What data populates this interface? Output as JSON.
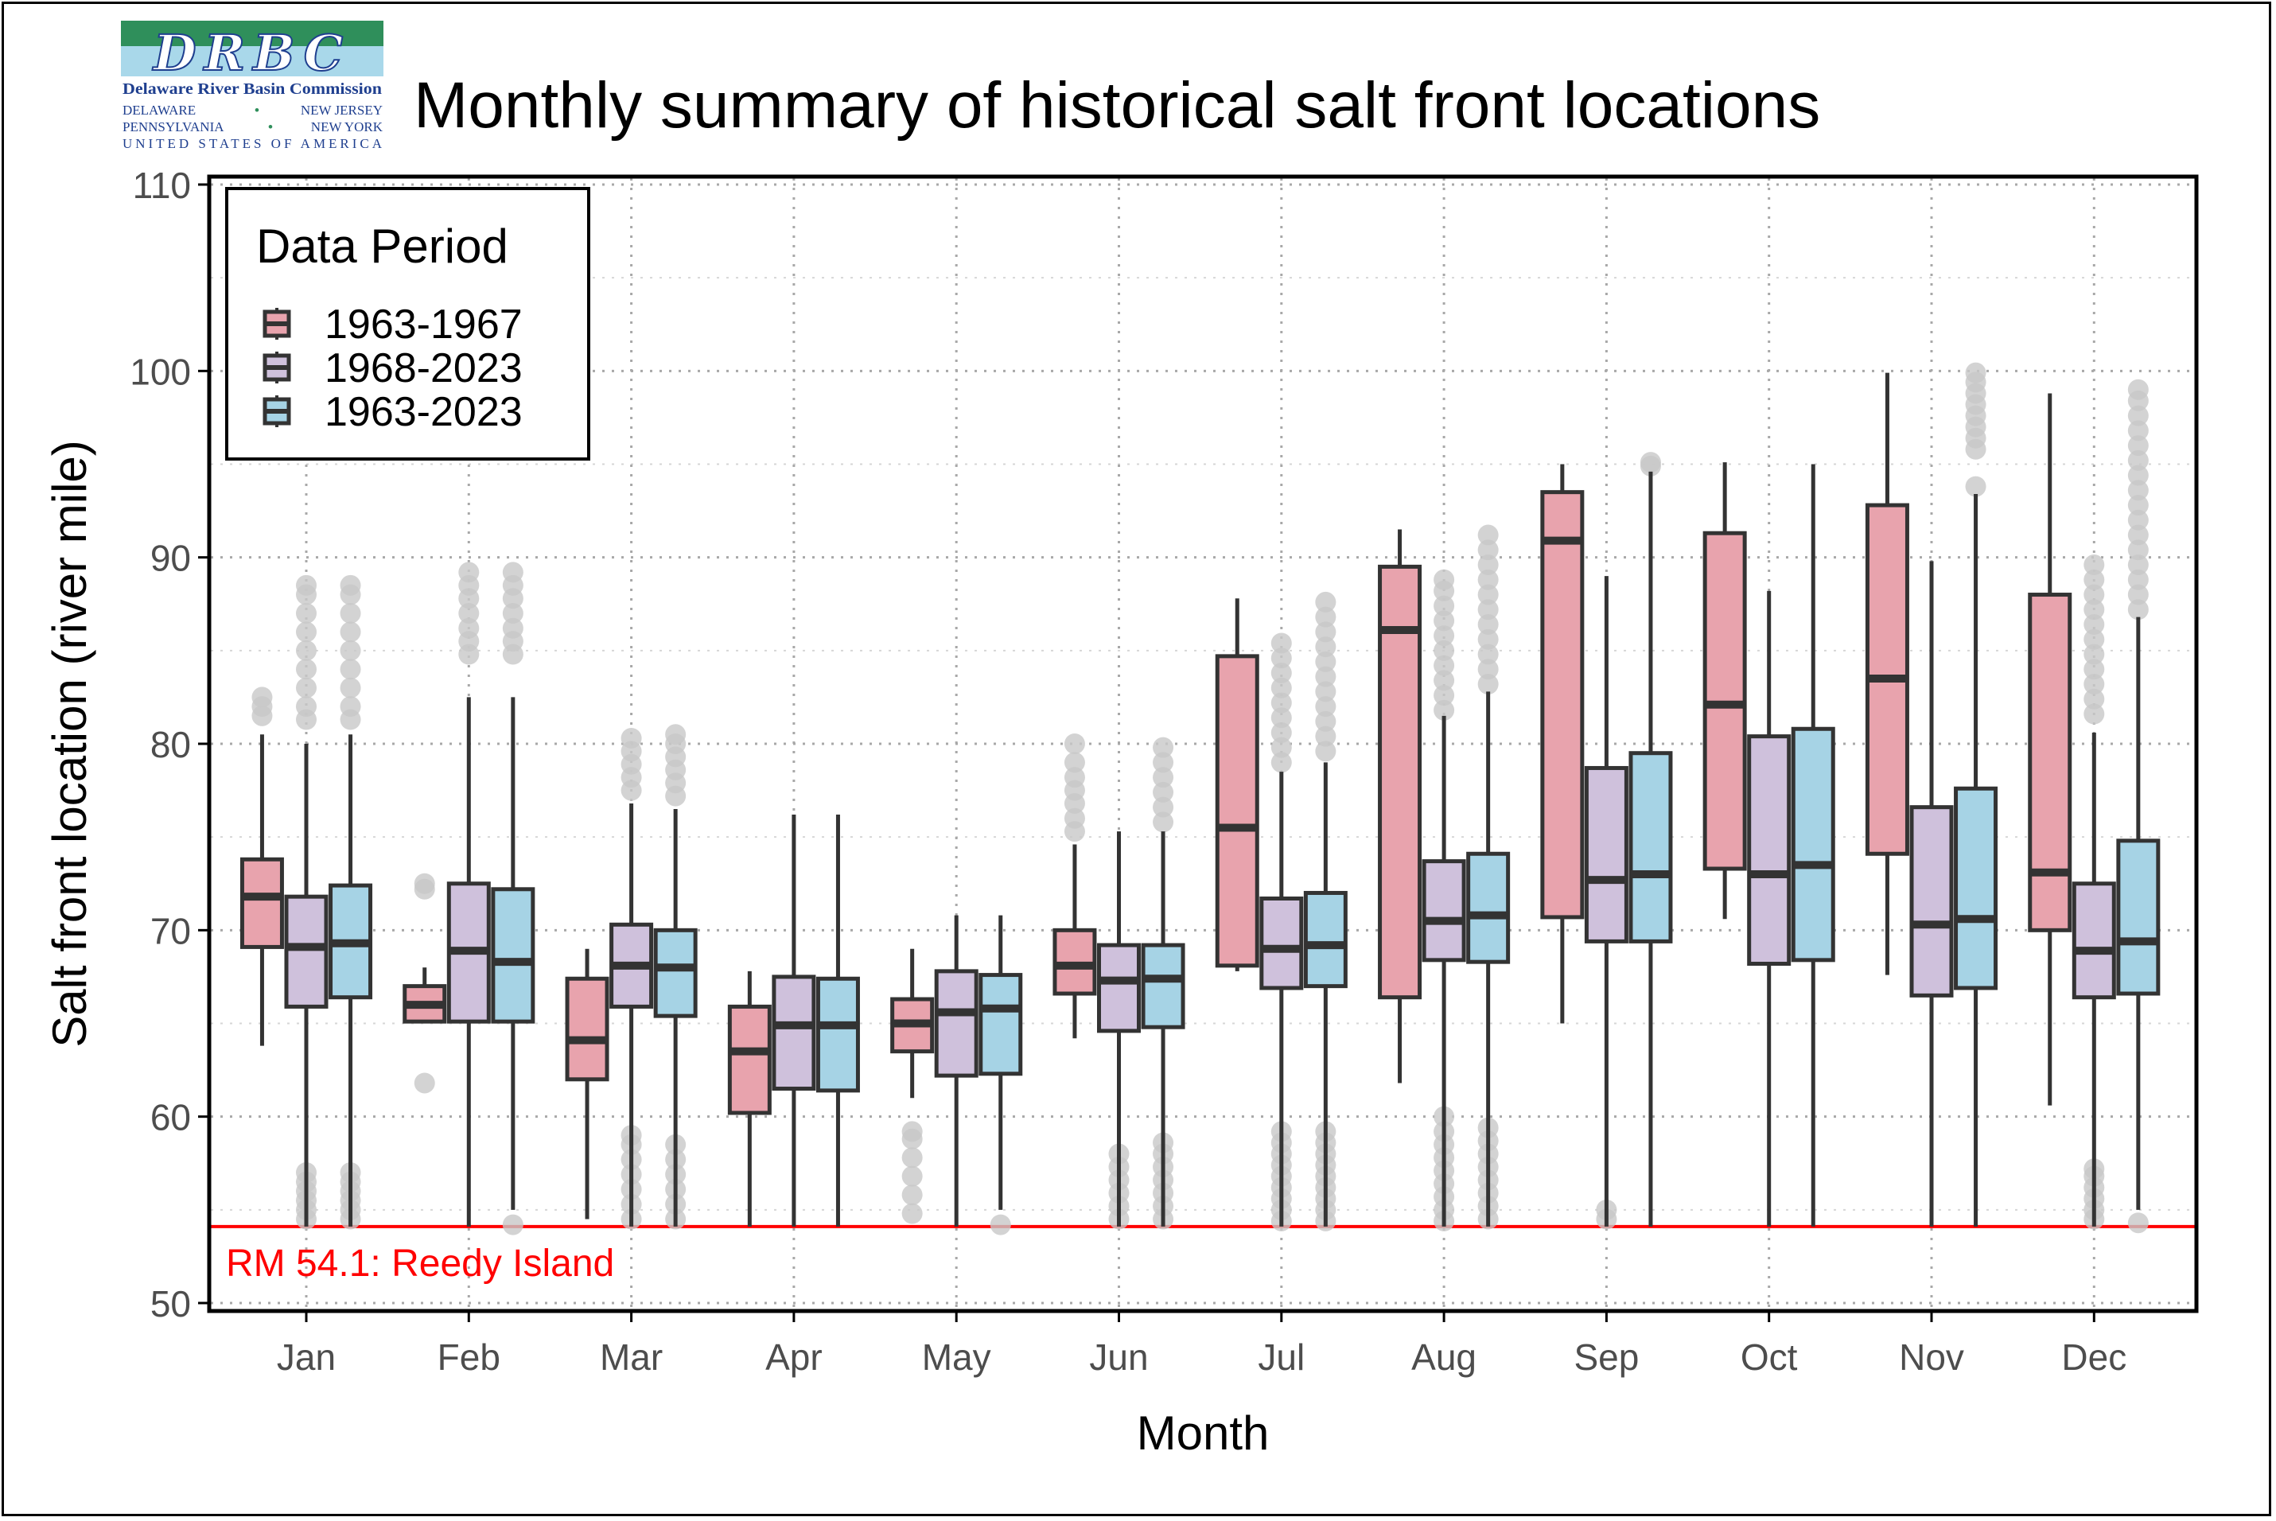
{
  "title": "Monthly summary of historical salt front locations",
  "logo": {
    "monogram": "DRBC",
    "name": "Delaware River Basin Commission",
    "line1_left": "DELAWARE",
    "line1_right": "NEW JERSEY",
    "line2_left": "PENNSYLVANIA",
    "line2_right": "NEW YORK",
    "line3": "UNITED STATES OF AMERICA",
    "colors": {
      "green": "#2f8f5b",
      "blue": "#a9d8ea",
      "navy": "#1f3f8f"
    }
  },
  "chart_data": {
    "type": "box",
    "title": "Monthly summary of historical salt front locations",
    "xlabel": "Month",
    "ylabel": "Salt front location (river mile)",
    "ylim": [
      50,
      110
    ],
    "yticks": [
      50,
      60,
      70,
      80,
      90,
      100,
      110
    ],
    "grid": true,
    "legend": {
      "title": "Data Period",
      "position": "top-left"
    },
    "reference_line": {
      "value": 54.1,
      "label": "RM 54.1: Reedy Island",
      "color": "#ff0000"
    },
    "categories": [
      "Jan",
      "Feb",
      "Mar",
      "Apr",
      "May",
      "Jun",
      "Jul",
      "Aug",
      "Sep",
      "Oct",
      "Nov",
      "Dec"
    ],
    "series": [
      {
        "name": "1963-1967",
        "color": "#e8a3ad",
        "boxes": [
          {
            "q1": 69.1,
            "median": 71.8,
            "q3": 73.8,
            "whisker_low": 63.8,
            "whisker_high": 80.5,
            "outliers": [
              81.5,
              82.0,
              82.5
            ]
          },
          {
            "q1": 65.1,
            "median": 66.0,
            "q3": 67.0,
            "whisker_low": 65.1,
            "whisker_high": 68.0,
            "outliers": [
              61.8,
              72.2,
              72.5
            ]
          },
          {
            "q1": 62.0,
            "median": 64.1,
            "q3": 67.4,
            "whisker_low": 54.5,
            "whisker_high": 69.0,
            "outliers": []
          },
          {
            "q1": 60.2,
            "median": 63.5,
            "q3": 65.9,
            "whisker_low": 54.1,
            "whisker_high": 67.8,
            "outliers": []
          },
          {
            "q1": 63.5,
            "median": 65.0,
            "q3": 66.3,
            "whisker_low": 61.0,
            "whisker_high": 69.0,
            "outliers": [
              54.8,
              55.8,
              56.8,
              57.8,
              58.8,
              59.2
            ]
          },
          {
            "q1": 66.6,
            "median": 68.1,
            "q3": 70.0,
            "whisker_low": 64.2,
            "whisker_high": 74.6,
            "outliers": [
              75.3,
              76.0,
              76.8,
              77.5,
              78.2,
              79.0,
              80.0
            ]
          },
          {
            "q1": 68.1,
            "median": 75.5,
            "q3": 84.7,
            "whisker_low": 67.8,
            "whisker_high": 87.8,
            "outliers": []
          },
          {
            "q1": 66.4,
            "median": 86.1,
            "q3": 89.5,
            "whisker_low": 61.8,
            "whisker_high": 91.5,
            "outliers": []
          },
          {
            "q1": 70.7,
            "median": 90.9,
            "q3": 93.5,
            "whisker_low": 65.0,
            "whisker_high": 95.0,
            "outliers": []
          },
          {
            "q1": 73.3,
            "median": 82.1,
            "q3": 91.3,
            "whisker_low": 70.6,
            "whisker_high": 95.1,
            "outliers": []
          },
          {
            "q1": 74.1,
            "median": 83.5,
            "q3": 92.8,
            "whisker_low": 67.6,
            "whisker_high": 99.9,
            "outliers": []
          },
          {
            "q1": 70.0,
            "median": 73.1,
            "q3": 88.0,
            "whisker_low": 60.6,
            "whisker_high": 98.8,
            "outliers": []
          }
        ]
      },
      {
        "name": "1968-2023",
        "color": "#cfc1dc",
        "boxes": [
          {
            "q1": 65.9,
            "median": 69.1,
            "q3": 71.8,
            "whisker_low": 54.1,
            "whisker_high": 80.0,
            "outliers": [
              54.5,
              55.0,
              55.5,
              56.0,
              56.5,
              57.0,
              81.3,
              82.0,
              83.0,
              84.0,
              85.0,
              86.0,
              87.0,
              88.0,
              88.5
            ]
          },
          {
            "q1": 65.1,
            "median": 68.9,
            "q3": 72.5,
            "whisker_low": 54.1,
            "whisker_high": 82.5,
            "outliers": [
              84.8,
              85.5,
              86.2,
              87.0,
              87.8,
              88.5,
              89.2
            ]
          },
          {
            "q1": 65.9,
            "median": 68.1,
            "q3": 70.3,
            "whisker_low": 54.1,
            "whisker_high": 76.8,
            "outliers": [
              54.5,
              55.3,
              56.1,
              56.9,
              57.7,
              58.5,
              59.0,
              77.5,
              78.2,
              78.9,
              79.6,
              80.3
            ]
          },
          {
            "q1": 61.5,
            "median": 64.9,
            "q3": 67.5,
            "whisker_low": 54.1,
            "whisker_high": 76.2,
            "outliers": []
          },
          {
            "q1": 62.2,
            "median": 65.6,
            "q3": 67.8,
            "whisker_low": 54.1,
            "whisker_high": 70.8,
            "outliers": []
          },
          {
            "q1": 64.6,
            "median": 67.3,
            "q3": 69.2,
            "whisker_low": 54.1,
            "whisker_high": 75.3,
            "outliers": [
              54.5,
              55.2,
              55.9,
              56.6,
              57.3,
              58.0
            ]
          },
          {
            "q1": 66.9,
            "median": 69.0,
            "q3": 71.7,
            "whisker_low": 54.1,
            "whisker_high": 78.5,
            "outliers": [
              54.4,
              55.0,
              55.6,
              56.2,
              56.8,
              57.4,
              58.0,
              58.6,
              59.2,
              79.0,
              79.8,
              80.6,
              81.4,
              82.2,
              83.0,
              83.8,
              84.6,
              85.4
            ]
          },
          {
            "q1": 68.4,
            "median": 70.5,
            "q3": 73.7,
            "whisker_low": 54.1,
            "whisker_high": 81.5,
            "outliers": [
              54.4,
              55.0,
              55.7,
              56.4,
              57.1,
              57.8,
              58.5,
              59.2,
              60.0,
              81.8,
              82.6,
              83.4,
              84.2,
              85.0,
              85.8,
              86.6,
              87.4,
              88.2,
              88.8
            ]
          },
          {
            "q1": 69.4,
            "median": 72.7,
            "q3": 78.7,
            "whisker_low": 54.1,
            "whisker_high": 89.0,
            "outliers": [
              54.5,
              55.0
            ]
          },
          {
            "q1": 68.2,
            "median": 73.0,
            "q3": 80.4,
            "whisker_low": 54.1,
            "whisker_high": 88.2,
            "outliers": []
          },
          {
            "q1": 66.5,
            "median": 70.3,
            "q3": 76.6,
            "whisker_low": 54.1,
            "whisker_high": 89.8,
            "outliers": []
          },
          {
            "q1": 66.4,
            "median": 68.9,
            "q3": 72.5,
            "whisker_low": 54.1,
            "whisker_high": 80.6,
            "outliers": [
              54.5,
              55.0,
              55.6,
              56.2,
              56.8,
              57.2,
              81.6,
              82.4,
              83.2,
              84.0,
              84.8,
              85.6,
              86.4,
              87.2,
              88.0,
              88.8,
              89.6
            ]
          }
        ]
      },
      {
        "name": "1963-2023",
        "color": "#a6d3e5",
        "boxes": [
          {
            "q1": 66.4,
            "median": 69.3,
            "q3": 72.4,
            "whisker_low": 54.1,
            "whisker_high": 80.5,
            "outliers": [
              54.5,
              55.0,
              55.5,
              56.0,
              56.5,
              57.0,
              81.3,
              82.0,
              83.0,
              84.0,
              85.0,
              86.0,
              87.0,
              88.0,
              88.5
            ]
          },
          {
            "q1": 65.1,
            "median": 68.3,
            "q3": 72.2,
            "whisker_low": 55.0,
            "whisker_high": 82.5,
            "outliers": [
              54.2,
              84.8,
              85.5,
              86.2,
              87.0,
              87.8,
              88.5,
              89.2
            ]
          },
          {
            "q1": 65.4,
            "median": 68.0,
            "q3": 70.0,
            "whisker_low": 54.1,
            "whisker_high": 76.5,
            "outliers": [
              54.5,
              55.3,
              56.1,
              56.9,
              57.7,
              58.5,
              77.2,
              77.9,
              78.6,
              79.3,
              80.0,
              80.5
            ]
          },
          {
            "q1": 61.4,
            "median": 64.9,
            "q3": 67.4,
            "whisker_low": 54.1,
            "whisker_high": 76.2,
            "outliers": []
          },
          {
            "q1": 62.3,
            "median": 65.8,
            "q3": 67.6,
            "whisker_low": 55.0,
            "whisker_high": 70.8,
            "outliers": [
              54.2
            ]
          },
          {
            "q1": 64.8,
            "median": 67.4,
            "q3": 69.2,
            "whisker_low": 54.1,
            "whisker_high": 75.3,
            "outliers": [
              54.5,
              55.2,
              55.9,
              56.6,
              57.3,
              58.0,
              58.6,
              75.8,
              76.6,
              77.4,
              78.2,
              79.0,
              79.8
            ]
          },
          {
            "q1": 67.0,
            "median": 69.2,
            "q3": 72.0,
            "whisker_low": 54.1,
            "whisker_high": 79.0,
            "outliers": [
              54.4,
              55.0,
              55.6,
              56.2,
              56.8,
              57.4,
              58.0,
              58.6,
              59.2,
              79.6,
              80.4,
              81.2,
              82.0,
              82.8,
              83.6,
              84.4,
              85.2,
              86.0,
              86.8,
              87.6
            ]
          },
          {
            "q1": 68.3,
            "median": 70.8,
            "q3": 74.1,
            "whisker_low": 54.1,
            "whisker_high": 82.8,
            "outliers": [
              54.5,
              55.2,
              55.9,
              56.6,
              57.3,
              58.0,
              58.7,
              59.4,
              83.2,
              84.0,
              84.8,
              85.6,
              86.4,
              87.2,
              88.0,
              88.8,
              89.6,
              90.4,
              91.2
            ]
          },
          {
            "q1": 69.4,
            "median": 73.0,
            "q3": 79.5,
            "whisker_low": 54.1,
            "whisker_high": 94.6,
            "outliers": [
              94.9,
              95.1
            ]
          },
          {
            "q1": 68.4,
            "median": 73.5,
            "q3": 80.8,
            "whisker_low": 54.1,
            "whisker_high": 95.0,
            "outliers": []
          },
          {
            "q1": 66.9,
            "median": 70.6,
            "q3": 77.6,
            "whisker_low": 54.1,
            "whisker_high": 93.4,
            "outliers": [
              93.8,
              95.8,
              96.4,
              97.0,
              97.6,
              98.2,
              98.8,
              99.4,
              99.9
            ]
          },
          {
            "q1": 66.6,
            "median": 69.4,
            "q3": 74.8,
            "whisker_low": 55.0,
            "whisker_high": 86.8,
            "outliers": [
              54.3,
              87.2,
              88.0,
              88.8,
              89.6,
              90.4,
              91.2,
              92.0,
              92.8,
              93.6,
              94.4,
              95.2,
              96.0,
              96.8,
              97.6,
              98.4,
              99.0
            ]
          }
        ]
      }
    ],
    "outlier_color": "#c8c8c8"
  }
}
